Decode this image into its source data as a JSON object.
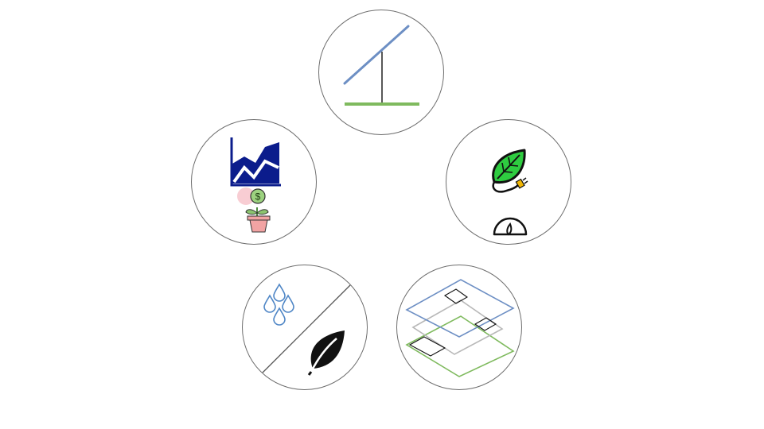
{
  "diagram": {
    "nodes": [
      {
        "id": "solar-tracker",
        "icons": [
          "solar-panel-icon",
          "mount-post-icon",
          "ground-line-icon"
        ]
      },
      {
        "id": "economics",
        "icons": [
          "area-chart-icon",
          "money-plant-icon"
        ]
      },
      {
        "id": "energy",
        "icons": [
          "eco-leaf-plug-icon",
          "gauge-icon"
        ]
      },
      {
        "id": "water-crop",
        "icons": [
          "water-drops-icon",
          "leaf-icon"
        ]
      },
      {
        "id": "land-layers",
        "icons": [
          "stacked-layers-icon"
        ]
      }
    ]
  },
  "colors": {
    "panel_blue": "#6d8fc4",
    "ground_green": "#7fba5e",
    "chart_navy": "#0b1c8c",
    "money_green": "#7fbf6a",
    "pot_pink": "#f2a3a3",
    "leaf_green": "#2ecc40",
    "water_blue": "#4f86c6",
    "outline_gray": "#6e6e6e"
  }
}
